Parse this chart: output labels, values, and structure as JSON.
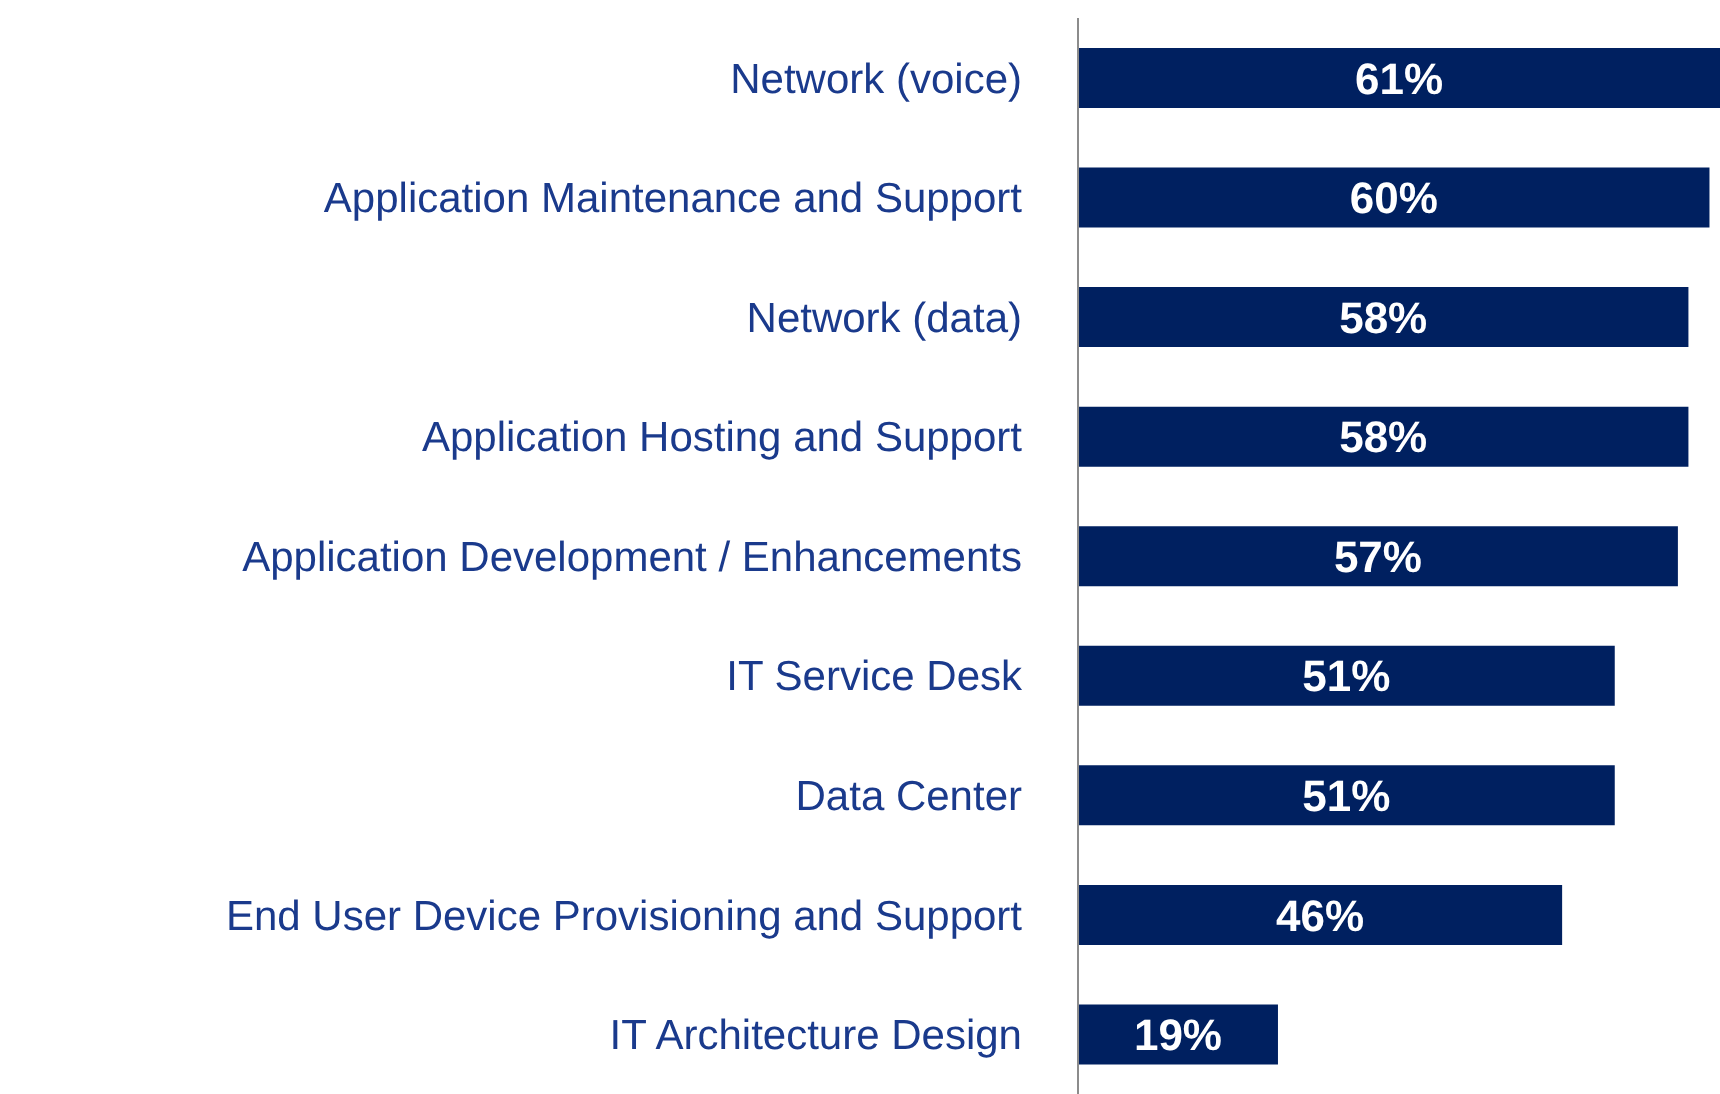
{
  "chart_data": {
    "type": "bar",
    "orientation": "horizontal",
    "categories": [
      "Network (voice)",
      "Application Maintenance and Support",
      "Network (data)",
      "Application Hosting and Support",
      "Application Development / Enhancements",
      "IT Service Desk",
      "Data Center",
      "End User Device Provisioning and Support",
      "IT Architecture Design"
    ],
    "values": [
      61,
      60,
      58,
      58,
      57,
      51,
      51,
      46,
      19
    ],
    "value_labels": [
      "61%",
      "60%",
      "58%",
      "58%",
      "57%",
      "51%",
      "51%",
      "46%",
      "19%"
    ],
    "color": "#002060",
    "grid": false,
    "legend": false
  }
}
